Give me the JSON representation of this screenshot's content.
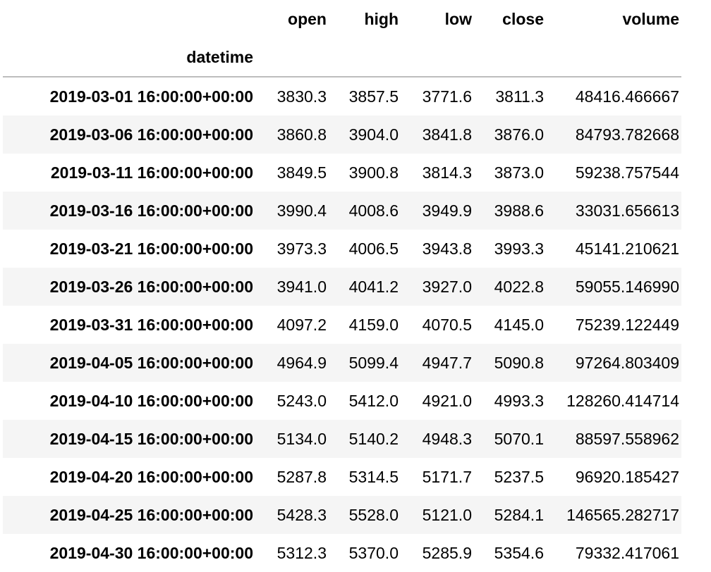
{
  "columns": [
    "open",
    "high",
    "low",
    "close",
    "volume"
  ],
  "index_name": "datetime",
  "rows": [
    {
      "datetime": "2019-03-01 16:00:00+00:00",
      "values": [
        "3830.3",
        "3857.5",
        "3771.6",
        "3811.3",
        "48416.466667"
      ]
    },
    {
      "datetime": "2019-03-06 16:00:00+00:00",
      "values": [
        "3860.8",
        "3904.0",
        "3841.8",
        "3876.0",
        "84793.782668"
      ]
    },
    {
      "datetime": "2019-03-11 16:00:00+00:00",
      "values": [
        "3849.5",
        "3900.8",
        "3814.3",
        "3873.0",
        "59238.757544"
      ]
    },
    {
      "datetime": "2019-03-16 16:00:00+00:00",
      "values": [
        "3990.4",
        "4008.6",
        "3949.9",
        "3988.6",
        "33031.656613"
      ]
    },
    {
      "datetime": "2019-03-21 16:00:00+00:00",
      "values": [
        "3973.3",
        "4006.5",
        "3943.8",
        "3993.3",
        "45141.210621"
      ]
    },
    {
      "datetime": "2019-03-26 16:00:00+00:00",
      "values": [
        "3941.0",
        "4041.2",
        "3927.0",
        "4022.8",
        "59055.146990"
      ]
    },
    {
      "datetime": "2019-03-31 16:00:00+00:00",
      "values": [
        "4097.2",
        "4159.0",
        "4070.5",
        "4145.0",
        "75239.122449"
      ]
    },
    {
      "datetime": "2019-04-05 16:00:00+00:00",
      "values": [
        "4964.9",
        "5099.4",
        "4947.7",
        "5090.8",
        "97264.803409"
      ]
    },
    {
      "datetime": "2019-04-10 16:00:00+00:00",
      "values": [
        "5243.0",
        "5412.0",
        "4921.0",
        "4993.3",
        "128260.414714"
      ]
    },
    {
      "datetime": "2019-04-15 16:00:00+00:00",
      "values": [
        "5134.0",
        "5140.2",
        "4948.3",
        "5070.1",
        "88597.558962"
      ]
    },
    {
      "datetime": "2019-04-20 16:00:00+00:00",
      "values": [
        "5287.8",
        "5314.5",
        "5171.7",
        "5237.5",
        "96920.185427"
      ]
    },
    {
      "datetime": "2019-04-25 16:00:00+00:00",
      "values": [
        "5428.3",
        "5528.0",
        "5121.0",
        "5284.1",
        "146565.282717"
      ]
    },
    {
      "datetime": "2019-04-30 16:00:00+00:00",
      "values": [
        "5312.3",
        "5370.0",
        "5285.9",
        "5354.6",
        "79332.417061"
      ]
    }
  ]
}
